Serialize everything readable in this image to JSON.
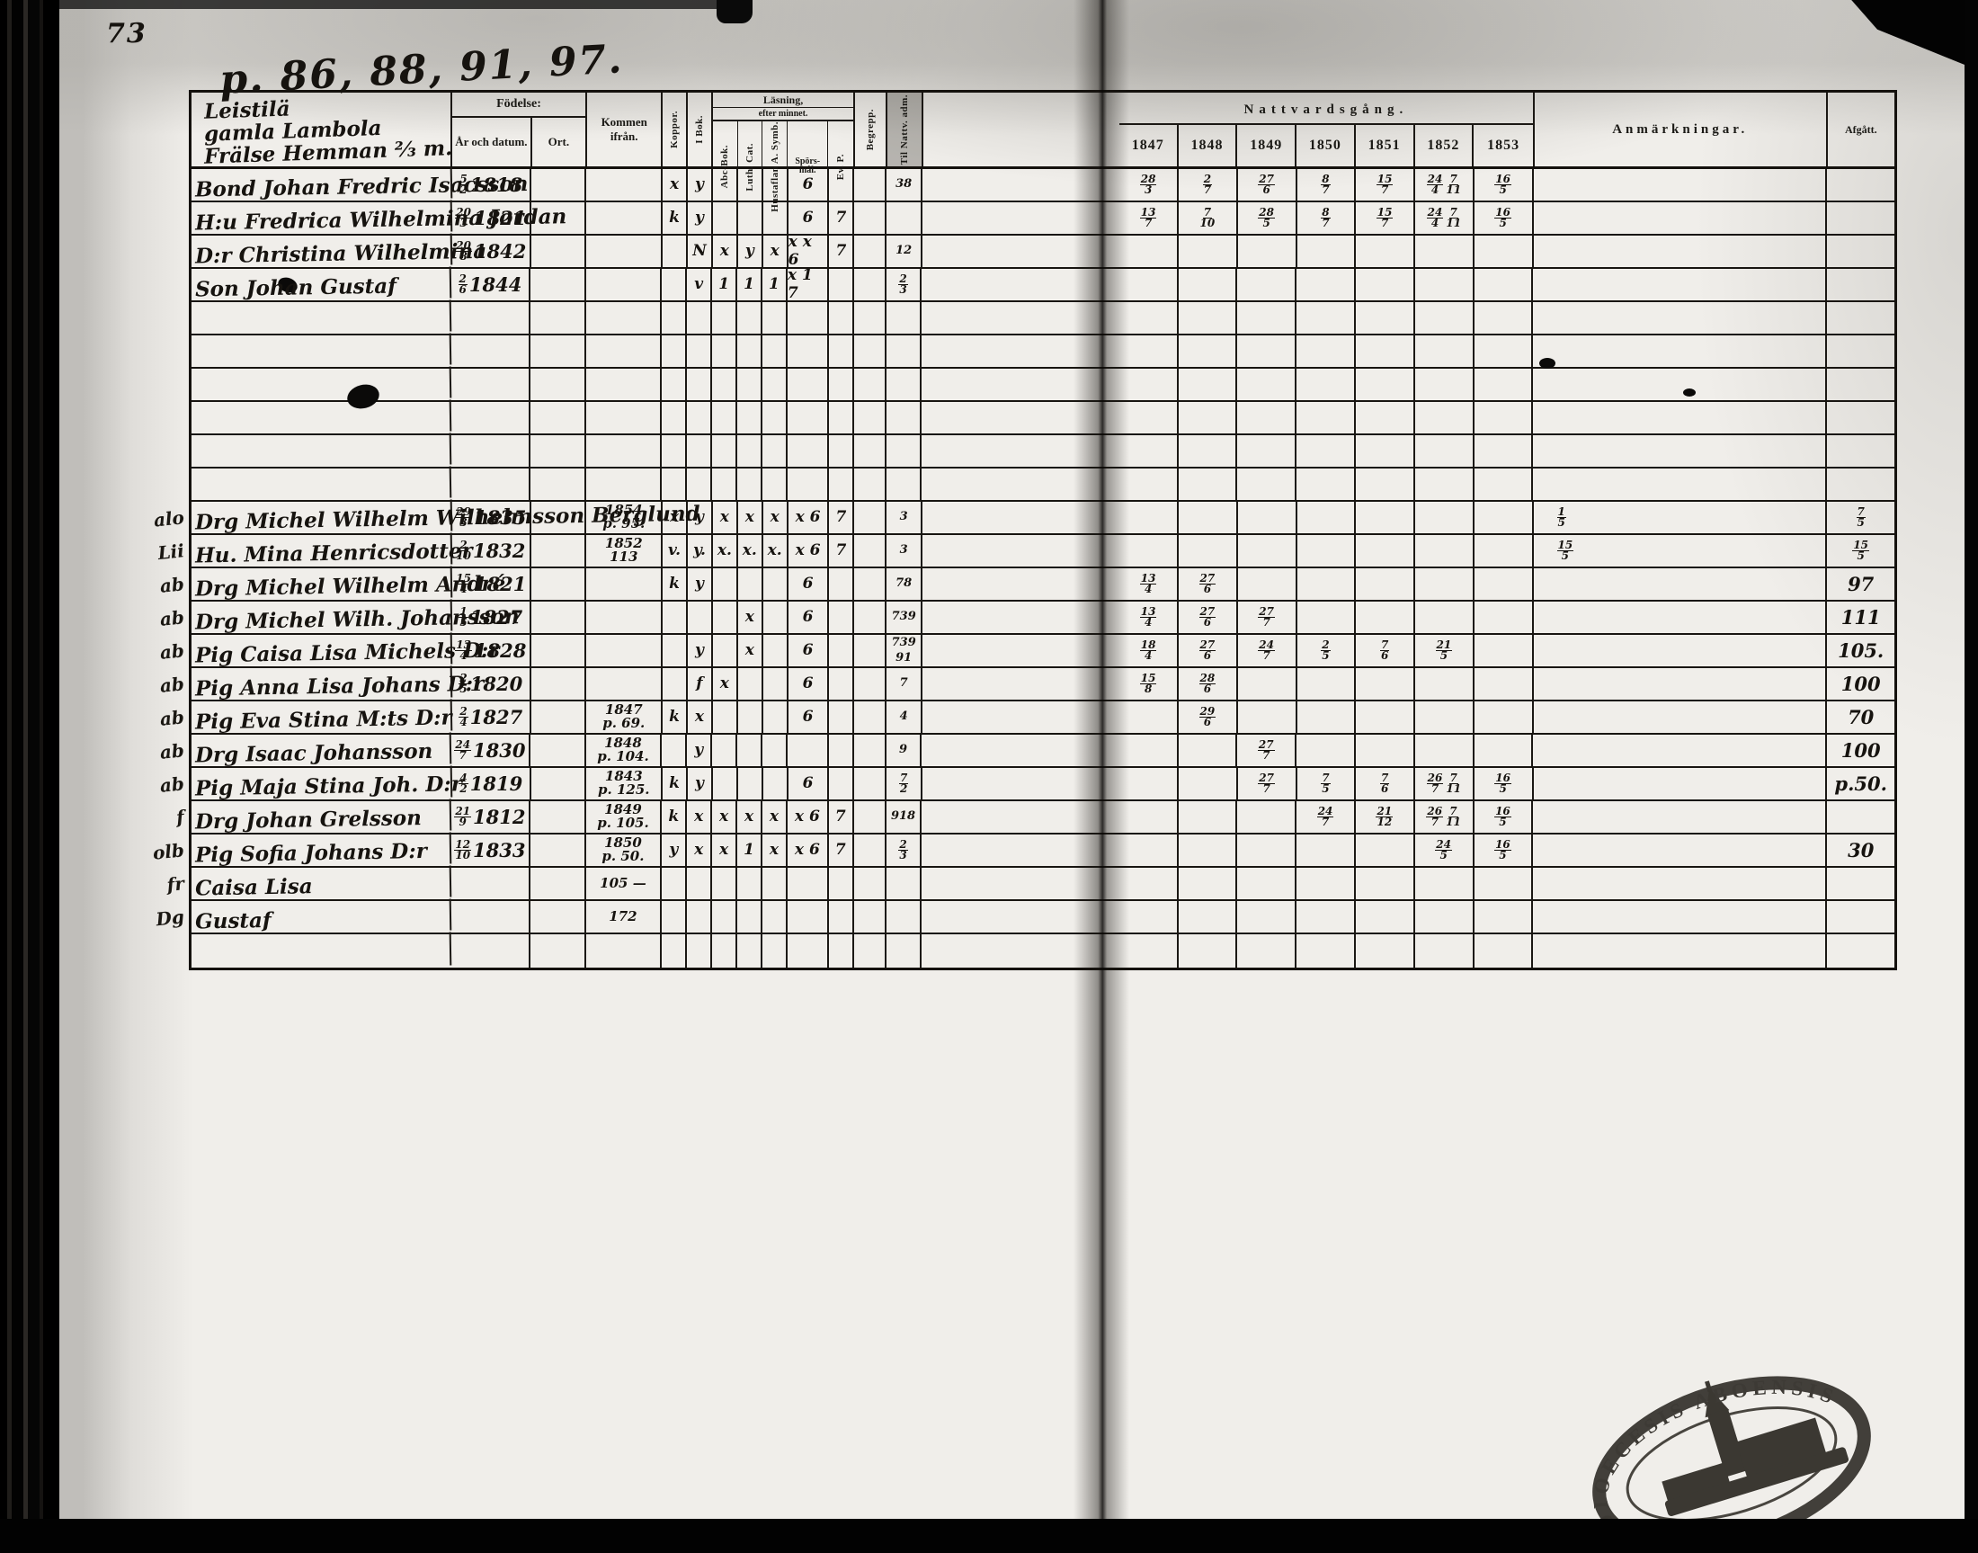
{
  "page": {
    "folio_number": "73",
    "page_refs": "p. 86, 88, 91, 97.",
    "stamp": {
      "line1": "DIOECESIS ABOENSIS",
      "line2": "FINL."
    }
  },
  "header": {
    "title_lines": [
      "Leistilä",
      "gamla Lambola",
      "Frälse Hemman ⅔ m."
    ],
    "fodelse": "Födelse:",
    "ar_och_datum": "År och datum.",
    "ort": "Ort.",
    "kommen": "Kommen ifrån.",
    "koppor": "Koppor.",
    "i_bok": "I Bok.",
    "lasning": "Läsning,",
    "efter_minnet": "efter minnet.",
    "abc_bok": "Abc-Bok.",
    "luth_cat": "Luth. Cat.",
    "hustaflan": "Hustaflan A. Symb.",
    "spors_1": "Spörs-",
    "spors_2": "mål.",
    "ev_p": "Ev. P.",
    "begrepp": "Begrepp.",
    "til_nattv": "Til Nattv. adm.",
    "nattvardsgang": "Nattvardsgång.",
    "anmarkningar": "Anmärkningar.",
    "afgatt": "Afgått."
  },
  "table": {
    "years": [
      "1847",
      "1848",
      "1849",
      "1850",
      "1851",
      "1852",
      "1853"
    ],
    "rows": [
      {
        "name": "Bond Johan Fredric Isacsson",
        "bf": "5/2",
        "by": "1818",
        "ko": "x",
        "ib": "y",
        "c4": "6",
        "til": "38",
        "y": [
          "28/3",
          "2/7",
          "27/6",
          "8/7",
          "15/7",
          "24/4 7/11",
          "16/5"
        ]
      },
      {
        "name": "H:u Fredrica Wilhelmina Jordan",
        "bf": "20/3",
        "by": "1821",
        "ko": "k",
        "ib": "y",
        "c4": "6",
        "c5": "7",
        "y": [
          "13/7",
          "7/10",
          "28/5",
          "8/7",
          "15/7",
          "24/4 7/11",
          "16/5"
        ]
      },
      {
        "name": "D:r Christina Wilhelmina",
        "bf": "20/8",
        "by": "1842",
        "ib": "N",
        "c1": "x",
        "c2": "y",
        "c3": "x",
        "c4": "x x 6",
        "c5": "7",
        "til": "12"
      },
      {
        "name": "Son Johan Gustaf",
        "bf": "2/6",
        "by": "1844",
        "ib": "v",
        "c1": "1",
        "c2": "1",
        "c3": "1",
        "c4": "x 1 7",
        "til": "2/3"
      },
      {},
      {},
      {},
      {},
      {},
      {},
      {
        "m": "alo",
        "name": "Drg Michel Wilhelm Wilhelmsson Berglund",
        "bf": "29/3",
        "by": "1835",
        "k1": "1854",
        "k2": "p. 95.",
        "ko": "x",
        "ib": "y",
        "c1": "x",
        "c2": "x",
        "c3": "x",
        "c4": "x 6",
        "c5": "7",
        "til": "3",
        "anm": "1/5",
        "afg": "7/5"
      },
      {
        "m": "Lii",
        "name": "Hu. Mina Henricsdotter",
        "bf": "2/10",
        "by": "1832",
        "k1": "1852",
        "k2": "113",
        "ko": "v.",
        "ib": "y.",
        "c1": "x.",
        "c2": "x.",
        "c3": "x.",
        "c4": "x 6",
        "c5": "7",
        "til": "3",
        "anm": "15/5",
        "afg": "15/5"
      },
      {
        "m": "ab",
        "name": "Drg Michel Wilhelm André",
        "bf": "15/4",
        "by": "1821",
        "ko": "k",
        "ib": "y",
        "c4": "6",
        "til": "78",
        "y": [
          "13/4",
          "27/6",
          "",
          "",
          "",
          "",
          ""
        ],
        "afg": "97"
      },
      {
        "m": "ab",
        "name": "Drg Michel Wilh. Johansson",
        "bf": "1/5",
        "by": "1827",
        "c2": "x",
        "c4": "6",
        "til": "739",
        "y": [
          "13/4",
          "27/6",
          "27/7",
          "",
          "",
          "",
          ""
        ],
        "afg": "111"
      },
      {
        "m": "ab",
        "name": "Pig Caisa Lisa Michels D:r",
        "bf": "13/4",
        "by": "1828",
        "ib": "y",
        "c2": "x",
        "c4": "6",
        "til": "739 91",
        "y": [
          "18/4",
          "27/6",
          "24/7",
          "2/5",
          "7/6",
          "21/5",
          ""
        ],
        "afg": "105."
      },
      {
        "m": "ab",
        "name": "Pig Anna Lisa Johans D:r",
        "bf": "2/5",
        "by": "1820",
        "ib": "f",
        "c1": "x",
        "c4": "6",
        "til": "7",
        "y": [
          "15/8",
          "28/6",
          "",
          "",
          "",
          "",
          ""
        ],
        "afg": "100"
      },
      {
        "m": "ab",
        "name": "Pig Eva Stina M:ts D:r",
        "bf": "2/4",
        "by": "1827",
        "k1": "1847",
        "k2": "p. 69.",
        "ko": "k",
        "ib": "x",
        "c4": "6",
        "til": "4",
        "y": [
          "",
          "29/6",
          "",
          "",
          "",
          "",
          ""
        ],
        "afg": "70"
      },
      {
        "m": "ab",
        "name": "Drg Isaac Johansson",
        "bf": "24/7",
        "by": "1830",
        "k1": "1848",
        "k2": "p. 104.",
        "ib": "y",
        "til": "9",
        "y": [
          "",
          "",
          "27/7",
          "",
          "",
          "",
          ""
        ],
        "afg": "100"
      },
      {
        "m": "ab",
        "name": "Pig Maja Stina Joh. D:r",
        "bf": "4/2",
        "by": "1819",
        "k1": "1843",
        "k2": "p. 125.",
        "ko": "k",
        "ib": "y",
        "c4": "6",
        "til": "7/2",
        "y": [
          "",
          "",
          "27/7",
          "7/5",
          "7/6",
          "26/7 7/11",
          "16/5"
        ],
        "afg": "p.50."
      },
      {
        "m": "f",
        "name": "Drg Johan Grelsson",
        "bf": "21/9",
        "by": "1812",
        "k1": "1849",
        "k2": "p. 105.",
        "ko": "k",
        "ib": "x",
        "c1": "x",
        "c2": "x",
        "c3": "x",
        "c4": "x 6",
        "c5": "7",
        "til": "918",
        "y": [
          "",
          "",
          "",
          "24/7",
          "21/12",
          "26/7 7/11",
          "16/5"
        ]
      },
      {
        "m": "olb",
        "name": "Pig Sofia Johans D:r",
        "bf": "12/10",
        "by": "1833",
        "k1": "1850",
        "k2": "p. 50.",
        "ko": "y",
        "ib": "x",
        "c1": "x",
        "c2": "1",
        "c3": "x",
        "c4": "x 6",
        "c5": "7",
        "til": "2/3",
        "y": [
          "",
          "",
          "",
          "",
          "",
          "24/5",
          "16/5"
        ],
        "afg": "30"
      },
      {
        "m": "fr",
        "name": "Caisa Lisa",
        "k1": "105 —"
      },
      {
        "m": "Dg",
        "name": "Gustaf",
        "k1": "172"
      },
      {}
    ]
  }
}
